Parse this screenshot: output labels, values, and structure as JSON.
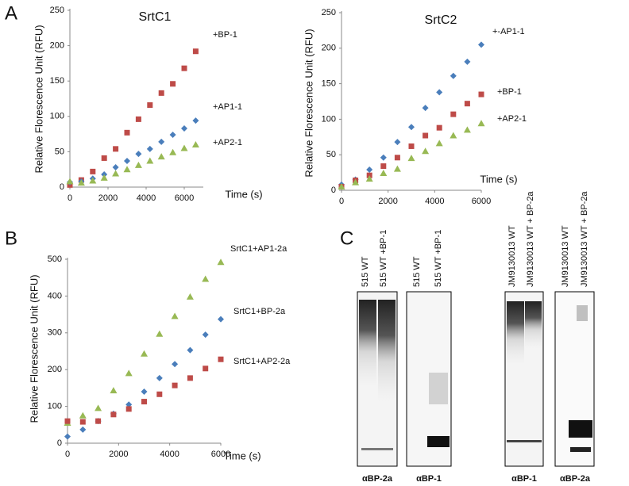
{
  "panel_labels": [
    "A",
    "B",
    "C"
  ],
  "chart_data": [
    {
      "type": "scatter",
      "title": "SrtC1",
      "x_label": "Time (s)",
      "y_label": "Relative Florescence Unit  (RFU)",
      "x": [
        0,
        600,
        1200,
        1800,
        2400,
        3000,
        3600,
        4200,
        4800,
        5400,
        6000,
        6600
      ],
      "xlim": [
        0,
        7000
      ],
      "xticks": [
        0,
        2000,
        4000,
        6000
      ],
      "ylim": [
        0,
        250
      ],
      "yticks": [
        0,
        50,
        100,
        150,
        200,
        250
      ],
      "series": [
        {
          "name": "+BP-1",
          "color": "#be4b48",
          "marker": "square",
          "values": [
            3,
            10,
            22,
            41,
            54,
            77,
            96,
            116,
            133,
            146,
            168,
            192
          ]
        },
        {
          "name": "+AP1-1",
          "color": "#4a7ebb",
          "marker": "diamond",
          "values": [
            7,
            8,
            12,
            18,
            28,
            37,
            47,
            54,
            64,
            74,
            83,
            94
          ]
        },
        {
          "name": "+AP2-1",
          "color": "#98b954",
          "marker": "triangle",
          "values": [
            8,
            6,
            9,
            13,
            19,
            25,
            31,
            37,
            43,
            49,
            55,
            60
          ]
        }
      ]
    },
    {
      "type": "scatter",
      "title": "SrtC2",
      "x_label": "Time (s)",
      "y_label": "Relative Florescence Unit  (RFU)",
      "x": [
        0,
        600,
        1200,
        1800,
        2400,
        3000,
        3600,
        4200,
        4800,
        5400,
        6000
      ],
      "xlim": [
        0,
        6000
      ],
      "xticks": [
        0,
        2000,
        4000,
        6000
      ],
      "ylim": [
        0,
        250
      ],
      "yticks": [
        0,
        50,
        100,
        150,
        200,
        250
      ],
      "series": [
        {
          "name": "+-AP1-1",
          "color": "#4a7ebb",
          "marker": "diamond",
          "values": [
            8,
            15,
            29,
            46,
            68,
            89,
            116,
            138,
            161,
            181,
            205
          ]
        },
        {
          "name": "+BP-1",
          "color": "#be4b48",
          "marker": "square",
          "values": [
            5,
            14,
            21,
            34,
            46,
            62,
            77,
            88,
            107,
            122,
            135
          ]
        },
        {
          "name": "+AP2-1",
          "color": "#98b954",
          "marker": "triangle",
          "values": [
            5,
            11,
            16,
            24,
            30,
            45,
            55,
            66,
            77,
            85,
            94
          ]
        }
      ]
    },
    {
      "type": "scatter",
      "x_label": "Time (s)",
      "y_label": "Relative Florescence Unit  (RFU)",
      "x": [
        0,
        600,
        1200,
        1800,
        2400,
        3000,
        3600,
        4200,
        4800,
        5400,
        6000
      ],
      "xlim": [
        0,
        6000
      ],
      "xticks": [
        0,
        2000,
        4000,
        6000
      ],
      "ylim": [
        0,
        500
      ],
      "yticks": [
        0,
        100,
        200,
        300,
        400,
        500
      ],
      "series": [
        {
          "name": "SrtC1+AP1-2a",
          "color": "#98b954",
          "marker": "triangle",
          "values": [
            55,
            75,
            95,
            143,
            190,
            243,
            297,
            345,
            398,
            446,
            492
          ]
        },
        {
          "name": "SrtC1+BP-2a",
          "color": "#4a7ebb",
          "marker": "diamond",
          "values": [
            18,
            37,
            60,
            80,
            105,
            140,
            177,
            215,
            253,
            295,
            337
          ]
        },
        {
          "name": "SrtC1+AP2-2a",
          "color": "#be4b48",
          "marker": "square",
          "values": [
            60,
            58,
            60,
            78,
            93,
            113,
            133,
            157,
            177,
            203,
            228
          ]
        }
      ]
    }
  ],
  "blots": [
    {
      "lanes": [
        "515 WT",
        "515 WT +BP-1"
      ],
      "antibody": "αBP-2a"
    },
    {
      "lanes": [
        "515 WT",
        "515 WT +BP-1"
      ],
      "antibody": "αBP-1"
    },
    {
      "lanes": [
        "JM9130013 WT",
        "JM9130013 WT + BP-2a"
      ],
      "antibody": "αBP-1"
    },
    {
      "lanes": [
        "JM9130013 WT",
        "JM9130013 WT + BP-2a"
      ],
      "antibody": "αBP-2a"
    }
  ]
}
